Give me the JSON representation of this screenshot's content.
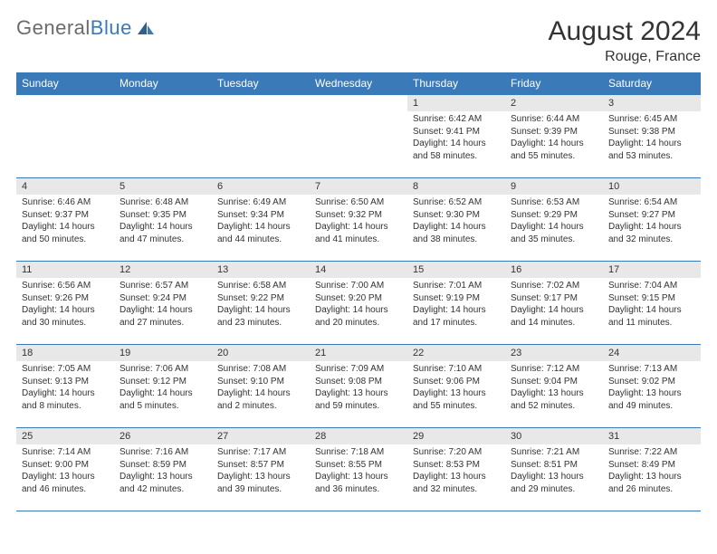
{
  "brand": {
    "part1": "General",
    "part2": "Blue"
  },
  "title": "August 2024",
  "location": "Rouge, France",
  "colors": {
    "accent": "#3a7ab8",
    "header_bg": "#3a7ab8",
    "header_fg": "#ffffff",
    "daynum_bg": "#e8e8e8",
    "text": "#333333",
    "logo_gray": "#6b6b6b"
  },
  "day_names": [
    "Sunday",
    "Monday",
    "Tuesday",
    "Wednesday",
    "Thursday",
    "Friday",
    "Saturday"
  ],
  "weeks": [
    [
      null,
      null,
      null,
      null,
      {
        "n": "1",
        "sunrise": "6:42 AM",
        "sunset": "9:41 PM",
        "daylight": "14 hours and 58 minutes."
      },
      {
        "n": "2",
        "sunrise": "6:44 AM",
        "sunset": "9:39 PM",
        "daylight": "14 hours and 55 minutes."
      },
      {
        "n": "3",
        "sunrise": "6:45 AM",
        "sunset": "9:38 PM",
        "daylight": "14 hours and 53 minutes."
      }
    ],
    [
      {
        "n": "4",
        "sunrise": "6:46 AM",
        "sunset": "9:37 PM",
        "daylight": "14 hours and 50 minutes."
      },
      {
        "n": "5",
        "sunrise": "6:48 AM",
        "sunset": "9:35 PM",
        "daylight": "14 hours and 47 minutes."
      },
      {
        "n": "6",
        "sunrise": "6:49 AM",
        "sunset": "9:34 PM",
        "daylight": "14 hours and 44 minutes."
      },
      {
        "n": "7",
        "sunrise": "6:50 AM",
        "sunset": "9:32 PM",
        "daylight": "14 hours and 41 minutes."
      },
      {
        "n": "8",
        "sunrise": "6:52 AM",
        "sunset": "9:30 PM",
        "daylight": "14 hours and 38 minutes."
      },
      {
        "n": "9",
        "sunrise": "6:53 AM",
        "sunset": "9:29 PM",
        "daylight": "14 hours and 35 minutes."
      },
      {
        "n": "10",
        "sunrise": "6:54 AM",
        "sunset": "9:27 PM",
        "daylight": "14 hours and 32 minutes."
      }
    ],
    [
      {
        "n": "11",
        "sunrise": "6:56 AM",
        "sunset": "9:26 PM",
        "daylight": "14 hours and 30 minutes."
      },
      {
        "n": "12",
        "sunrise": "6:57 AM",
        "sunset": "9:24 PM",
        "daylight": "14 hours and 27 minutes."
      },
      {
        "n": "13",
        "sunrise": "6:58 AM",
        "sunset": "9:22 PM",
        "daylight": "14 hours and 23 minutes."
      },
      {
        "n": "14",
        "sunrise": "7:00 AM",
        "sunset": "9:20 PM",
        "daylight": "14 hours and 20 minutes."
      },
      {
        "n": "15",
        "sunrise": "7:01 AM",
        "sunset": "9:19 PM",
        "daylight": "14 hours and 17 minutes."
      },
      {
        "n": "16",
        "sunrise": "7:02 AM",
        "sunset": "9:17 PM",
        "daylight": "14 hours and 14 minutes."
      },
      {
        "n": "17",
        "sunrise": "7:04 AM",
        "sunset": "9:15 PM",
        "daylight": "14 hours and 11 minutes."
      }
    ],
    [
      {
        "n": "18",
        "sunrise": "7:05 AM",
        "sunset": "9:13 PM",
        "daylight": "14 hours and 8 minutes."
      },
      {
        "n": "19",
        "sunrise": "7:06 AM",
        "sunset": "9:12 PM",
        "daylight": "14 hours and 5 minutes."
      },
      {
        "n": "20",
        "sunrise": "7:08 AM",
        "sunset": "9:10 PM",
        "daylight": "14 hours and 2 minutes."
      },
      {
        "n": "21",
        "sunrise": "7:09 AM",
        "sunset": "9:08 PM",
        "daylight": "13 hours and 59 minutes."
      },
      {
        "n": "22",
        "sunrise": "7:10 AM",
        "sunset": "9:06 PM",
        "daylight": "13 hours and 55 minutes."
      },
      {
        "n": "23",
        "sunrise": "7:12 AM",
        "sunset": "9:04 PM",
        "daylight": "13 hours and 52 minutes."
      },
      {
        "n": "24",
        "sunrise": "7:13 AM",
        "sunset": "9:02 PM",
        "daylight": "13 hours and 49 minutes."
      }
    ],
    [
      {
        "n": "25",
        "sunrise": "7:14 AM",
        "sunset": "9:00 PM",
        "daylight": "13 hours and 46 minutes."
      },
      {
        "n": "26",
        "sunrise": "7:16 AM",
        "sunset": "8:59 PM",
        "daylight": "13 hours and 42 minutes."
      },
      {
        "n": "27",
        "sunrise": "7:17 AM",
        "sunset": "8:57 PM",
        "daylight": "13 hours and 39 minutes."
      },
      {
        "n": "28",
        "sunrise": "7:18 AM",
        "sunset": "8:55 PM",
        "daylight": "13 hours and 36 minutes."
      },
      {
        "n": "29",
        "sunrise": "7:20 AM",
        "sunset": "8:53 PM",
        "daylight": "13 hours and 32 minutes."
      },
      {
        "n": "30",
        "sunrise": "7:21 AM",
        "sunset": "8:51 PM",
        "daylight": "13 hours and 29 minutes."
      },
      {
        "n": "31",
        "sunrise": "7:22 AM",
        "sunset": "8:49 PM",
        "daylight": "13 hours and 26 minutes."
      }
    ]
  ],
  "labels": {
    "sunrise": "Sunrise:",
    "sunset": "Sunset:",
    "daylight": "Daylight:"
  }
}
